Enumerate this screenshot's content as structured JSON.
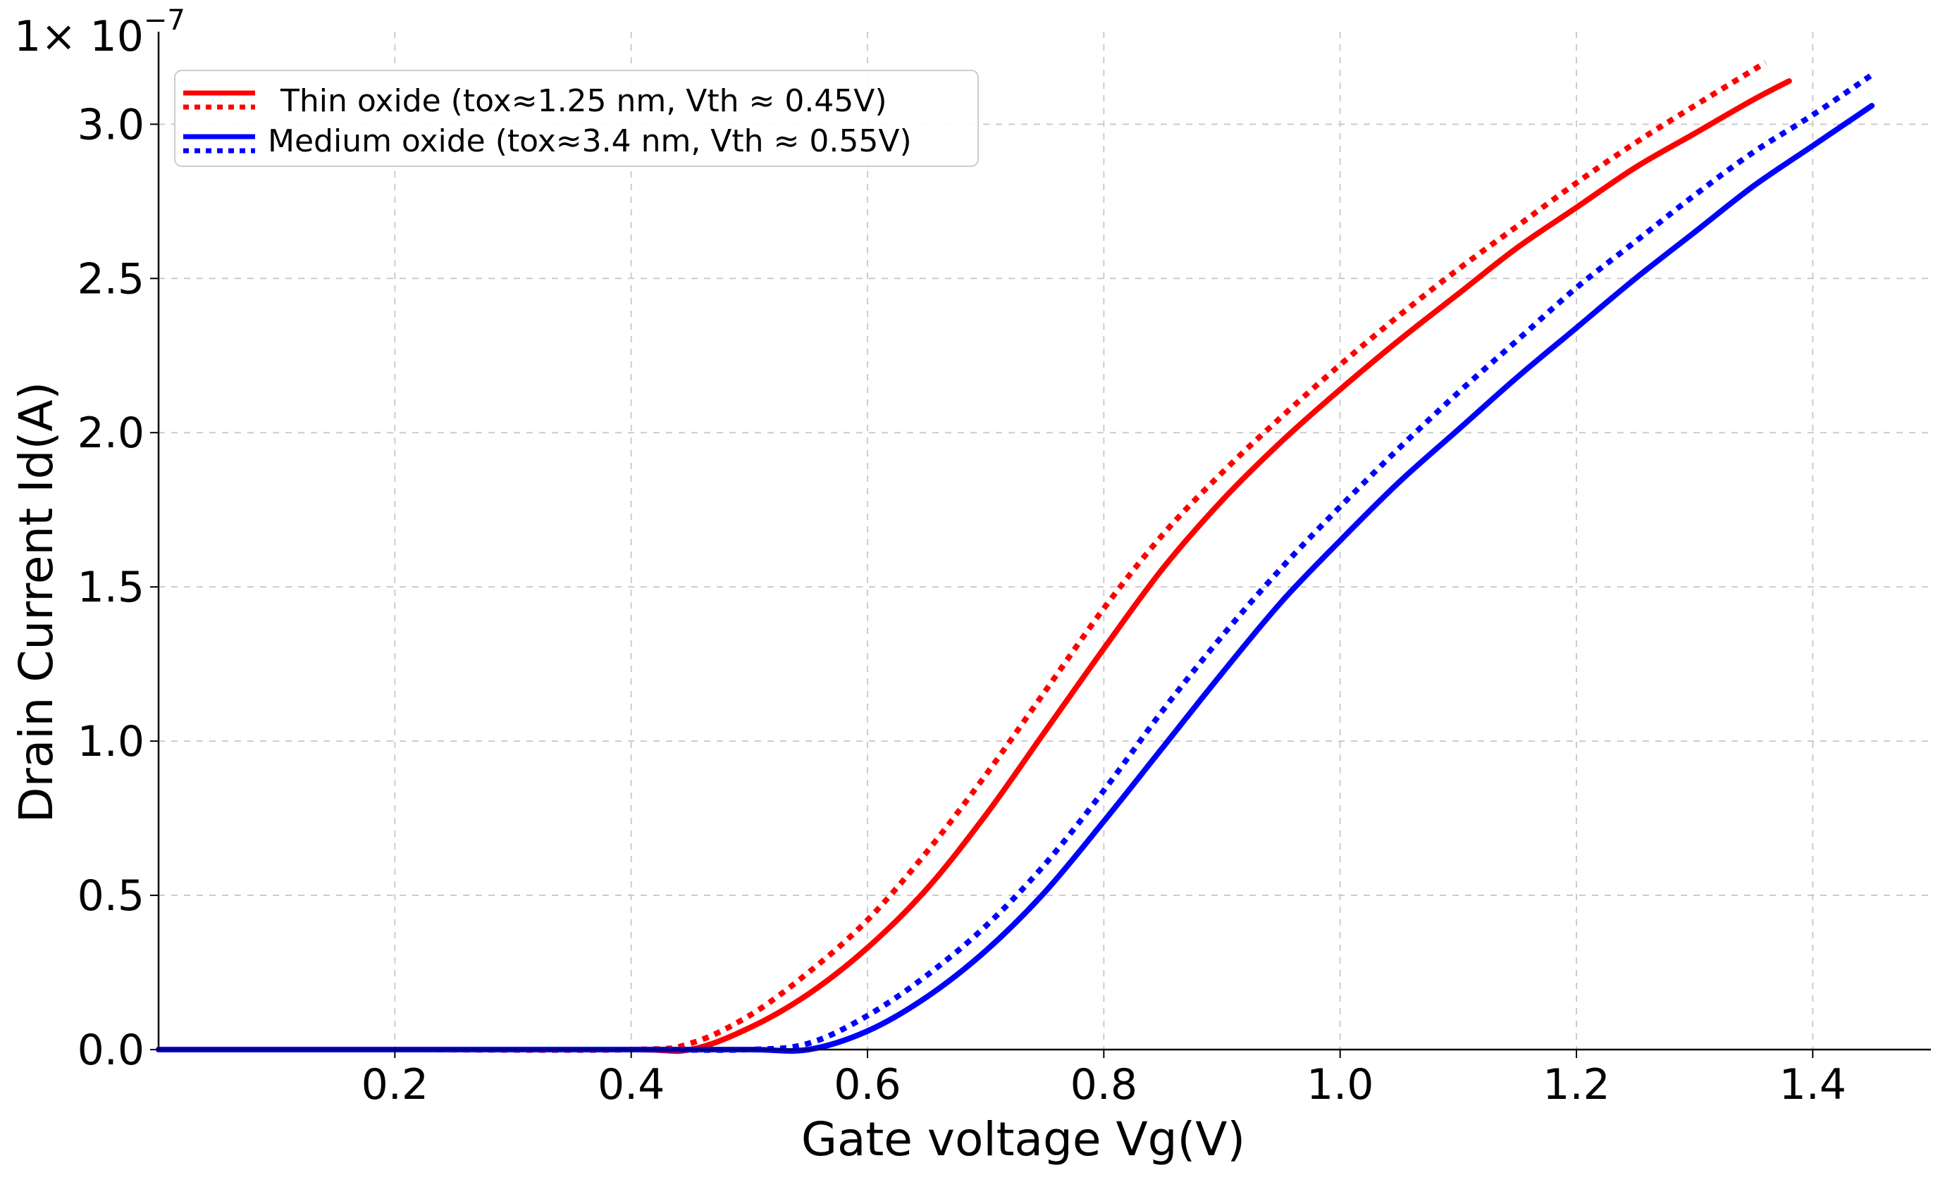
{
  "chart_data": {
    "type": "line",
    "title": "",
    "xlabel": "Gate voltage Vg(V)",
    "ylabel": "Drain Current Id(A)",
    "y_offset_label": "1× 10",
    "y_offset_exponent": "−7",
    "xlim": [
      0.0,
      1.5
    ],
    "ylim": [
      0.0,
      3.3
    ],
    "grid": true,
    "legend_position": "top-left",
    "x_ticks": [
      {
        "value": 0.2,
        "label": "0.2"
      },
      {
        "value": 0.4,
        "label": "0.4"
      },
      {
        "value": 0.6,
        "label": "0.6"
      },
      {
        "value": 0.8,
        "label": "0.8"
      },
      {
        "value": 1.0,
        "label": "1.0"
      },
      {
        "value": 1.2,
        "label": "1.2"
      },
      {
        "value": 1.4,
        "label": "1.4"
      }
    ],
    "y_ticks": [
      {
        "value": 0.0,
        "label": "0.0"
      },
      {
        "value": 0.5,
        "label": "0.5"
      },
      {
        "value": 1.0,
        "label": "1.0"
      },
      {
        "value": 1.5,
        "label": "1.5"
      },
      {
        "value": 2.0,
        "label": "2.0"
      },
      {
        "value": 2.5,
        "label": "2.5"
      },
      {
        "value": 3.0,
        "label": "3.0"
      }
    ],
    "legend": [
      {
        "label": "Thin oxide (tox≈1.25 nm, Vth ≈ 0.45V)",
        "color": "#ff0000"
      },
      {
        "label": "Medium oxide (tox≈3.4 nm, Vth ≈ 0.55V)",
        "color": "#0000ff"
      }
    ],
    "series": [
      {
        "name": "Thin oxide solid",
        "color": "#ff0000",
        "style": "solid",
        "x": [
          0.0,
          0.2,
          0.4,
          0.45,
          0.5,
          0.55,
          0.6,
          0.65,
          0.7,
          0.75,
          0.8,
          0.85,
          0.9,
          0.95,
          1.0,
          1.05,
          1.1,
          1.15,
          1.2,
          1.25,
          1.3,
          1.35,
          1.38
        ],
        "y": [
          0.0,
          0.0,
          0.0,
          0.0,
          0.07,
          0.18,
          0.33,
          0.52,
          0.76,
          1.03,
          1.3,
          1.56,
          1.78,
          1.97,
          2.14,
          2.3,
          2.45,
          2.6,
          2.73,
          2.86,
          2.97,
          3.08,
          3.14
        ]
      },
      {
        "name": "Thin oxide dotted",
        "color": "#ff0000",
        "style": "dotted",
        "x": [
          0.0,
          0.2,
          0.4,
          0.45,
          0.5,
          0.55,
          0.6,
          0.65,
          0.7,
          0.75,
          0.8,
          0.85,
          0.9,
          0.95,
          1.0,
          1.05,
          1.1,
          1.15,
          1.2,
          1.25,
          1.3,
          1.36
        ],
        "y": [
          0.0,
          0.0,
          0.0,
          0.02,
          0.11,
          0.25,
          0.42,
          0.64,
          0.89,
          1.16,
          1.43,
          1.67,
          1.87,
          2.05,
          2.22,
          2.38,
          2.53,
          2.67,
          2.81,
          2.94,
          3.06,
          3.2
        ]
      },
      {
        "name": "Medium oxide solid",
        "color": "#0000ff",
        "style": "solid",
        "x": [
          0.0,
          0.2,
          0.4,
          0.5,
          0.55,
          0.6,
          0.65,
          0.7,
          0.75,
          0.8,
          0.85,
          0.9,
          0.95,
          1.0,
          1.05,
          1.1,
          1.15,
          1.2,
          1.25,
          1.3,
          1.35,
          1.4,
          1.45
        ],
        "y": [
          0.0,
          0.0,
          0.0,
          0.0,
          0.0,
          0.06,
          0.17,
          0.32,
          0.51,
          0.74,
          0.98,
          1.22,
          1.45,
          1.65,
          1.84,
          2.01,
          2.18,
          2.34,
          2.5,
          2.65,
          2.8,
          2.93,
          3.06
        ]
      },
      {
        "name": "Medium oxide dotted",
        "color": "#0000ff",
        "style": "dotted",
        "x": [
          0.0,
          0.2,
          0.4,
          0.5,
          0.55,
          0.6,
          0.65,
          0.7,
          0.75,
          0.8,
          0.85,
          0.9,
          0.95,
          1.0,
          1.05,
          1.1,
          1.15,
          1.2,
          1.25,
          1.3,
          1.35,
          1.4,
          1.45
        ],
        "y": [
          0.0,
          0.0,
          0.0,
          0.0,
          0.02,
          0.11,
          0.24,
          0.4,
          0.6,
          0.84,
          1.1,
          1.34,
          1.56,
          1.76,
          1.95,
          2.13,
          2.3,
          2.47,
          2.62,
          2.77,
          2.91,
          3.03,
          3.16
        ]
      }
    ]
  }
}
